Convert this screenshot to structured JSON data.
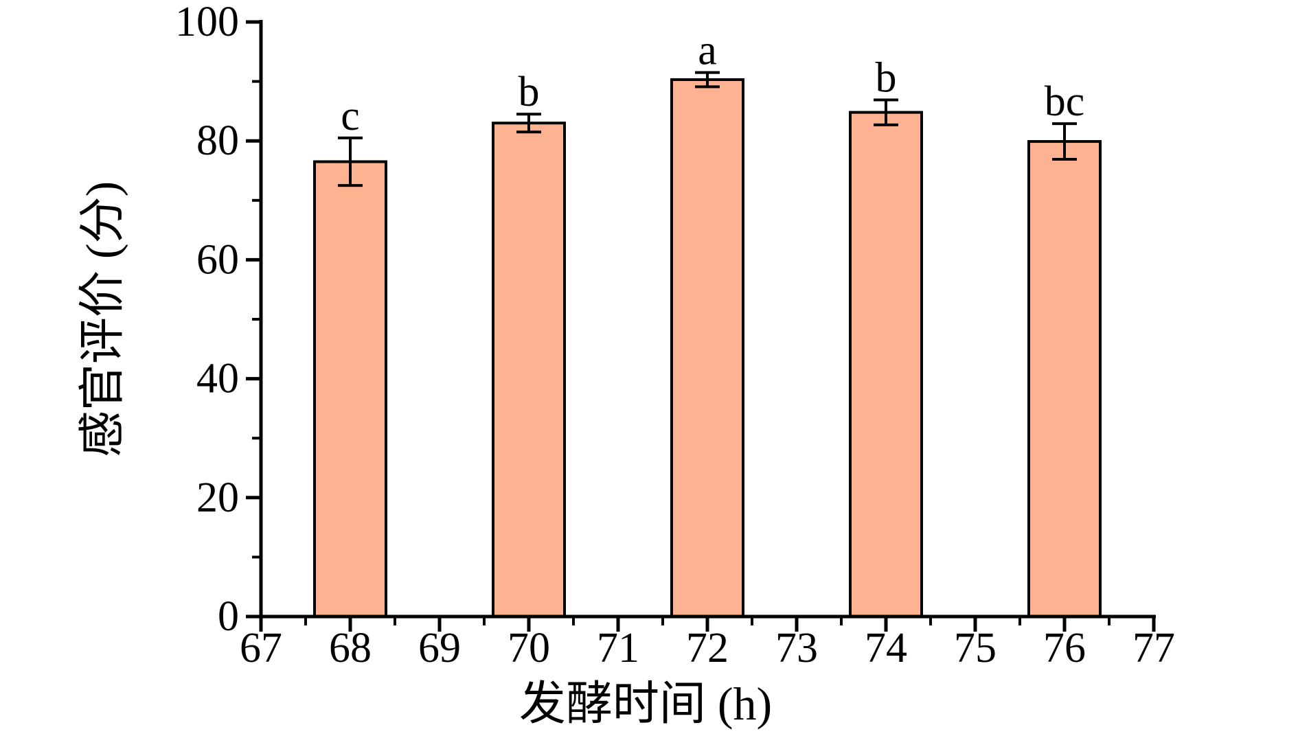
{
  "chart_data": {
    "type": "bar",
    "title": "",
    "xlabel": "发酵时间 (h)",
    "ylabel": "感官评价 (分)",
    "categories": [
      68,
      70,
      72,
      74,
      76
    ],
    "values": [
      76.5,
      83,
      90.3,
      84.8,
      79.9
    ],
    "errors": [
      4,
      1.5,
      1.2,
      2.1,
      3
    ],
    "sig_labels": [
      "c",
      "b",
      "a",
      "b",
      "bc"
    ],
    "xlim": [
      67,
      77
    ],
    "ylim": [
      0,
      100
    ],
    "x_major_ticks": [
      67,
      68,
      69,
      70,
      71,
      72,
      73,
      74,
      75,
      76,
      77
    ],
    "x_minor_step": 0.5,
    "y_major_ticks": [
      0,
      20,
      40,
      60,
      80,
      100
    ],
    "y_minor_step": 10,
    "bar_width_hours": 0.8,
    "grid": false,
    "legend_position": "none",
    "colors": {
      "bar_fill": "#fdb392",
      "bar_edge": "#000000",
      "axis": "#000000",
      "error_bar": "#000000",
      "text": "#000000"
    }
  }
}
